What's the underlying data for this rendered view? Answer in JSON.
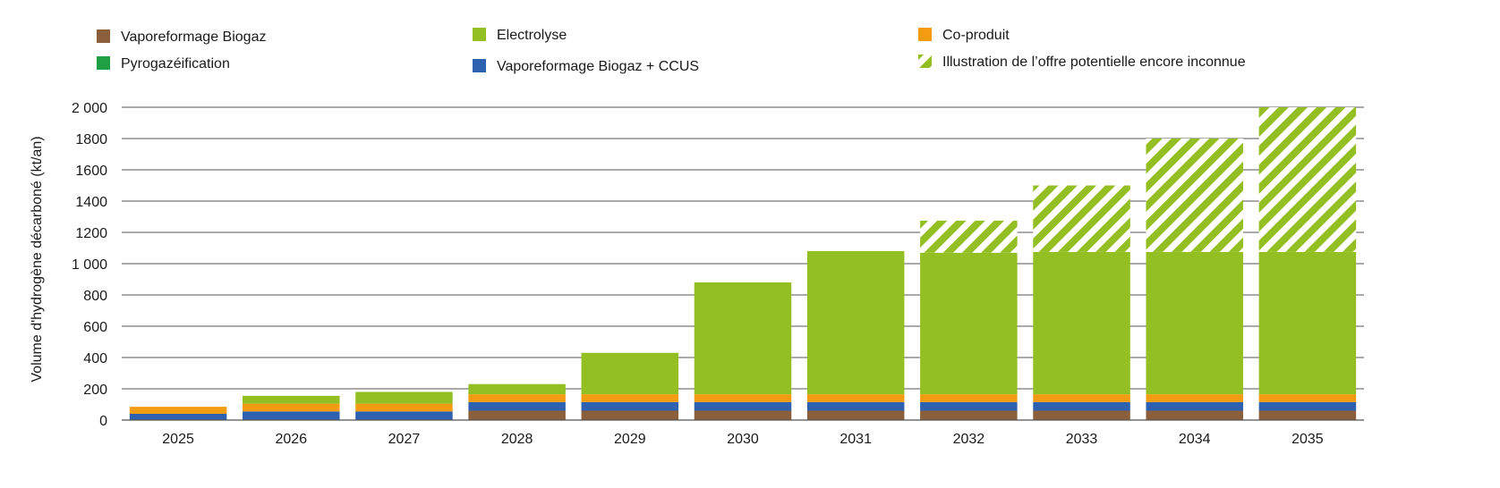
{
  "chart_data": {
    "type": "bar",
    "stacked": true,
    "ylabel": "Volume d'hydrogène décarboné (kt/an)",
    "xlabel": "",
    "ylim": [
      0,
      2000
    ],
    "yticks": [
      0,
      200,
      400,
      600,
      800,
      1000,
      1200,
      1400,
      1600,
      1800,
      2000
    ],
    "ytick_labels": [
      "0",
      "200",
      "400",
      "600",
      "800",
      "1 000",
      "1200",
      "1400",
      "1600",
      "1800",
      "2 000"
    ],
    "grid": true,
    "legend_position": "top",
    "categories": [
      "2025",
      "2026",
      "2027",
      "2028",
      "2029",
      "2030",
      "2031",
      "2032",
      "2033",
      "2034",
      "2035"
    ],
    "series": [
      {
        "name": "Vaporeformage Biogaz",
        "color": "#8B5E3C",
        "values": [
          0,
          0,
          0,
          60,
          60,
          60,
          60,
          60,
          60,
          60,
          60
        ]
      },
      {
        "name": "Vaporeformage Biogaz + CCUS",
        "color": "#2E62B0",
        "values": [
          40,
          55,
          55,
          55,
          55,
          55,
          55,
          55,
          55,
          55,
          55
        ]
      },
      {
        "name": "Co-produit",
        "color": "#F39C12",
        "values": [
          45,
          50,
          50,
          50,
          50,
          50,
          50,
          50,
          50,
          50,
          50
        ]
      },
      {
        "name": "Electrolyse",
        "color": "#93BF22",
        "values": [
          0,
          50,
          75,
          65,
          265,
          715,
          915,
          905,
          910,
          910,
          910
        ]
      },
      {
        "name": "Illustration de l’offre potentielle  encore inconnue",
        "color": "#93BF22",
        "pattern": "hatch",
        "values": [
          0,
          0,
          0,
          0,
          0,
          0,
          0,
          205,
          425,
          725,
          925
        ]
      }
    ],
    "legend_items": [
      {
        "label": "Vaporeformage Biogaz",
        "color": "#8B5E3C",
        "pattern": "solid"
      },
      {
        "label": "Pyrogazéification",
        "color": "#1FA044",
        "pattern": "solid"
      },
      {
        "label": "Electrolyse",
        "color": "#93BF22",
        "pattern": "solid"
      },
      {
        "label": "Vaporeformage Biogaz + CCUS",
        "color": "#2E62B0",
        "pattern": "solid"
      },
      {
        "label": "Co-produit",
        "color": "#F39C12",
        "pattern": "solid"
      },
      {
        "label": "Illustration de l’offre potentielle  encore inconnue",
        "color": "#93BF22",
        "pattern": "hatch"
      }
    ]
  }
}
